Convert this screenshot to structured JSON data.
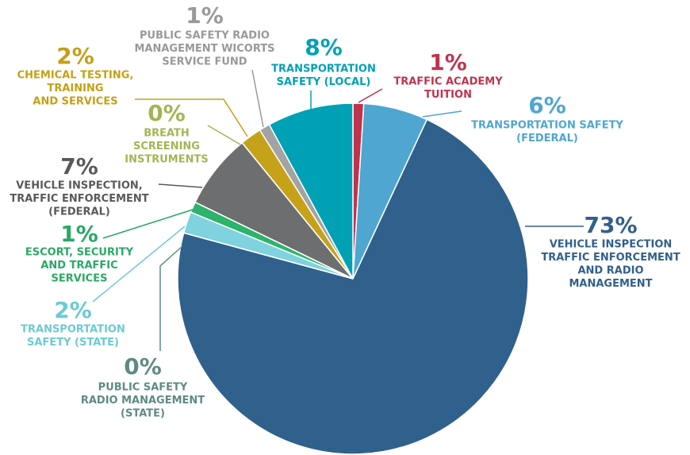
{
  "chart_data": {
    "type": "pie",
    "categories": [
      [
        "TRAFFIC ACADEMY",
        "TUITION"
      ],
      [
        "TRANSPORTATION SAFETY",
        "(FEDERAL)"
      ],
      [
        "VEHICLE INSPECTION",
        "TRAFFIC ENFORCEMENT",
        "AND RADIO",
        "MANAGEMENT"
      ],
      [
        "PUBLIC SAFETY",
        "RADIO MANAGEMENT",
        "(STATE)"
      ],
      [
        "TRANSPORTATION",
        "SAFETY (STATE)"
      ],
      [
        "ESCORT, SECURITY",
        "AND TRAFFIC",
        "SERVICES"
      ],
      [
        "VEHICLE INSPECTION,",
        "TRAFFIC ENFORCEMENT",
        "(FEDERAL)"
      ],
      [
        "BREATH",
        "SCREENING",
        "INSTRUMENTS"
      ],
      [
        "CHEMICAL TESTING,",
        "TRAINING",
        "AND SERVICES"
      ],
      [
        "PUBLIC SAFETY RADIO",
        "MANAGEMENT WICORTS",
        "SERVICE FUND"
      ],
      [
        "TRANSPORTATION",
        "SAFETY (LOCAL)"
      ]
    ],
    "values": [
      1,
      6,
      73,
      0,
      2,
      1,
      7,
      0,
      2,
      1,
      8
    ],
    "value_labels": [
      "1%",
      "6%",
      "73%",
      "0%",
      "2%",
      "1%",
      "7%",
      "0%",
      "2%",
      "1%",
      "8%"
    ],
    "colors": [
      "#c0334d",
      "#4fa6d0",
      "#30608c",
      "#5e8a84",
      "#7fd2de",
      "#2db36b",
      "#6d6e70",
      "#a4b454",
      "#c6a21a",
      "#a3a3a3",
      "#00a1b5"
    ]
  }
}
